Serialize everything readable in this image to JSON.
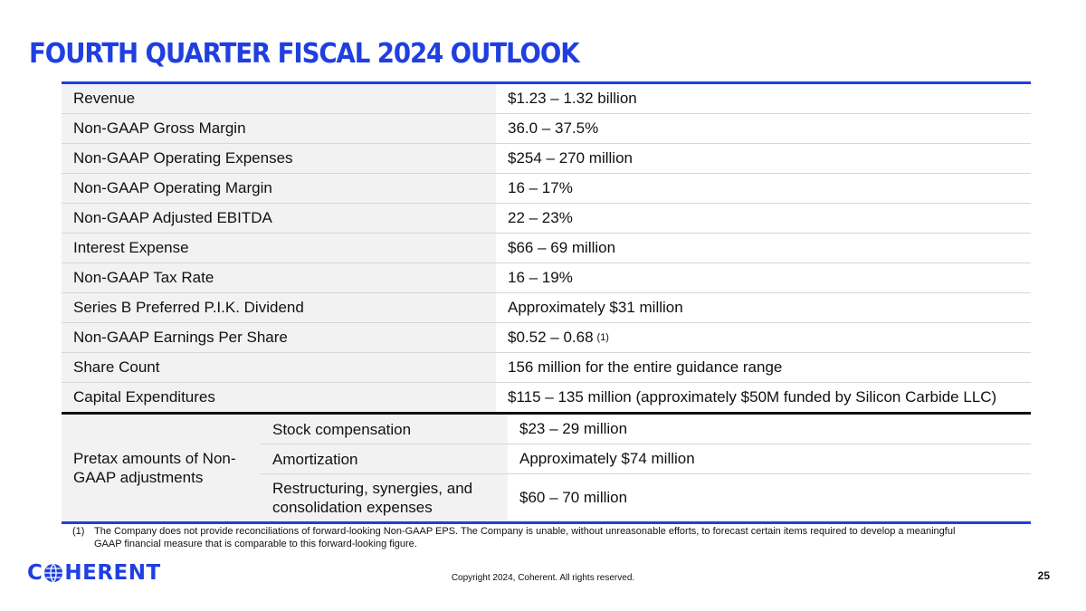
{
  "title": "FOURTH QUARTER FISCAL 2024 OUTLOOK",
  "rows": [
    {
      "label": "Revenue",
      "value": "$1.23 – 1.32 billion"
    },
    {
      "label": "Non-GAAP Gross Margin",
      "value": "36.0 – 37.5%"
    },
    {
      "label": "Non-GAAP Operating Expenses",
      "value": "$254 – 270 million"
    },
    {
      "label": "Non-GAAP Operating Margin",
      "value": "16 – 17%"
    },
    {
      "label": "Non-GAAP Adjusted EBITDA",
      "value": "22 – 23%"
    },
    {
      "label": "Interest Expense",
      "value": "$66 – 69 million"
    },
    {
      "label": "Non-GAAP Tax Rate",
      "value": "16 – 19%"
    },
    {
      "label": "Series B Preferred P.I.K. Dividend",
      "value": "Approximately $31 million"
    },
    {
      "label": "Non-GAAP Earnings Per Share",
      "value": "$0.52 – 0.68",
      "note": "(1)"
    },
    {
      "label": "Share Count",
      "value": "156 million for the entire guidance range"
    },
    {
      "label": "Capital Expenditures",
      "value": "$115 – 135 million (approximately $50M funded by Silicon Carbide LLC)"
    }
  ],
  "adjustments": {
    "label": "Pretax amounts of Non-GAAP adjustments",
    "items": [
      {
        "label": "Stock compensation",
        "value": "$23 – 29 million"
      },
      {
        "label": "Amortization",
        "value": "Approximately $74 million"
      },
      {
        "label": "Restructuring, synergies, and consolidation expenses",
        "value": "$60 – 70 million"
      }
    ]
  },
  "footnote": {
    "number": "(1)",
    "text": "The Company does not provide reconciliations of forward-looking Non-GAAP EPS. The Company is unable, without unreasonable efforts, to forecast certain items required to develop a meaningful GAAP financial measure that is comparable to this forward-looking figure."
  },
  "logo": {
    "prefix": "C",
    "suffix": "HERENT"
  },
  "copyright": "Copyright 2024, Coherent. All rights reserved.",
  "page_number": "25",
  "colors": {
    "accent": "#1f3fe0",
    "row_shade": "#f2f2f2"
  }
}
